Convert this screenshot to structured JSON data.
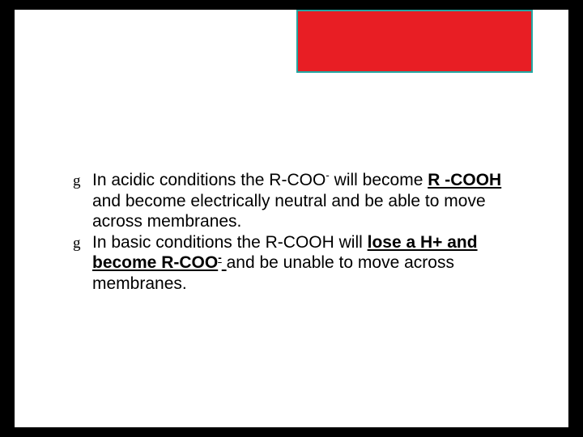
{
  "slide": {
    "background": "#ffffff",
    "outer_background": "#000000",
    "red_box": {
      "fill": "#e81e24",
      "border": "#24a7a2"
    },
    "bullets": [
      {
        "segments": [
          {
            "t": "In acidic conditions the R-COO"
          },
          {
            "t": "-",
            "sup": true
          },
          {
            "t": " will become "
          },
          {
            "t": "R -COOH",
            "b": true,
            "u": true
          },
          {
            "t": " and become electrically neutral and be able to move across membranes."
          }
        ]
      },
      {
        "segments": [
          {
            "t": "In basic conditions the R-COOH will "
          },
          {
            "t": "lose a H+ and become R-COO",
            "b": true,
            "u": true
          },
          {
            "t": "-",
            "b": true,
            "u": true,
            "sup": true
          },
          {
            "t": " ",
            "b": true,
            "u": true
          },
          {
            "t": "and be unable to move across membranes."
          }
        ]
      }
    ],
    "bullet_glyph": "g",
    "text_color": "#000000",
    "font_size": 21
  }
}
